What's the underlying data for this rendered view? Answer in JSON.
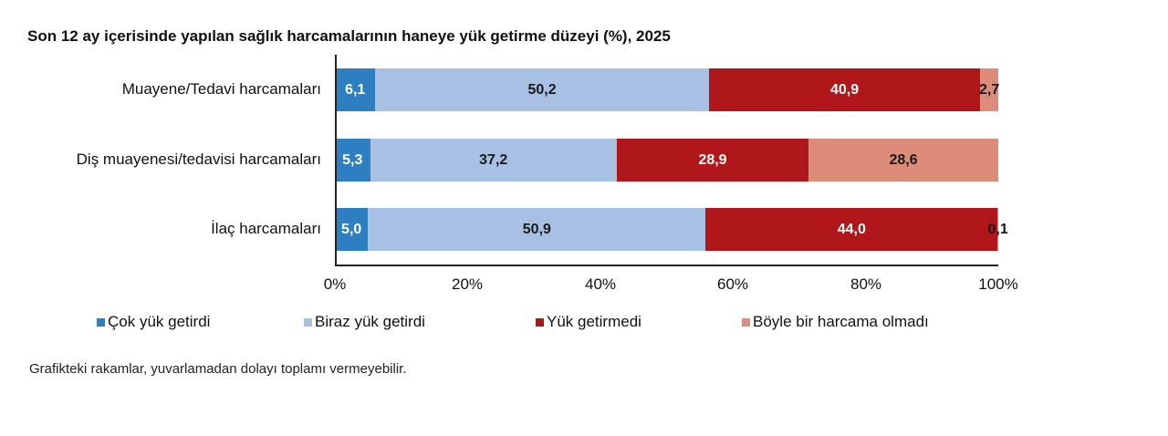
{
  "title": "Son 12 ay içerisinde yapılan sağlık harcamalarının haneye yük getirme düzeyi (%), 2025",
  "note": "Grafikteki rakamlar, yuvarlamadan dolayı toplamı vermeyebilir.",
  "colors": {
    "cok_yuk": "#2e7fc1",
    "biraz_yuk": "#a8c0e3",
    "yuk_getirmedi": "#b0171b",
    "harcama_olmadi": "#dd8c79"
  },
  "legend": [
    {
      "label": "Çok yük getirdi",
      "color": "#2e7fc1"
    },
    {
      "label": "Biraz yük getirdi",
      "color": "#a8c0e3"
    },
    {
      "label": "Yük getirmedi",
      "color": "#b0171b"
    },
    {
      "label": "Böyle bir harcama olmadı",
      "color": "#dd8c79"
    }
  ],
  "rows": [
    {
      "label": "Muayene/Tedavi harcamaları",
      "values": [
        "6,1",
        "50,2",
        "40,9",
        "2,7"
      ]
    },
    {
      "label": "Diş muayenesi/tedavisi harcamaları",
      "values": [
        "5,3",
        "37,2",
        "28,9",
        "28,6"
      ]
    },
    {
      "label": "İlaç harcamaları",
      "values": [
        "5,0",
        "50,9",
        "44,0",
        "0,1"
      ]
    }
  ],
  "x_ticks": [
    "0%",
    "20%",
    "40%",
    "60%",
    "80%",
    "100%"
  ],
  "chart_data": {
    "type": "bar",
    "orientation": "horizontal",
    "stacked": "percent",
    "title": "Son 12 ay içerisinde yapılan sağlık harcamalarının haneye yük getirme düzeyi (%), 2025",
    "categories": [
      "Muayene/Tedavi harcamaları",
      "Diş muayenesi/tedavisi harcamaları",
      "İlaç harcamaları"
    ],
    "series": [
      {
        "name": "Çok yük getirdi",
        "color": "#2e7fc1",
        "values": [
          6.1,
          5.3,
          5.0
        ]
      },
      {
        "name": "Biraz yük getirdi",
        "color": "#a8c0e3",
        "values": [
          50.2,
          37.2,
          50.9
        ]
      },
      {
        "name": "Yük getirmedi",
        "color": "#b0171b",
        "values": [
          40.9,
          28.9,
          44.0
        ]
      },
      {
        "name": "Böyle bir harcama olmadı",
        "color": "#dd8c79",
        "values": [
          2.7,
          28.6,
          0.1
        ]
      }
    ],
    "xlabel": "",
    "ylabel": "",
    "xlim": [
      0,
      100
    ],
    "x_tick_labels": [
      "0%",
      "20%",
      "40%",
      "60%",
      "80%",
      "100%"
    ],
    "grid": false,
    "legend_position": "bottom",
    "annotations": [
      "Grafikteki rakamlar, yuvarlamadan dolayı toplamı vermeyebilir."
    ]
  }
}
